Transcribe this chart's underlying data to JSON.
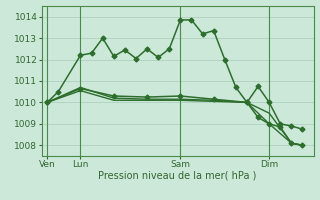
{
  "background_color": "#cce8d8",
  "grid_color": "#aaccbb",
  "line_color": "#2d6e2d",
  "xlabel": "Pression niveau de la mer( hPa )",
  "ylim": [
    1007.5,
    1014.5
  ],
  "yticks": [
    1008,
    1009,
    1010,
    1011,
    1012,
    1013,
    1014
  ],
  "day_labels": [
    "Ven",
    "Lun",
    "Sam",
    "Dim"
  ],
  "day_positions": [
    0,
    3,
    12,
    20
  ],
  "xlim": [
    -0.5,
    24
  ],
  "lines": [
    {
      "x": [
        0,
        1,
        3,
        4,
        5,
        6,
        7,
        8,
        9,
        10,
        11,
        12,
        13,
        14,
        15,
        16,
        17,
        18,
        19,
        20,
        21,
        22,
        23
      ],
      "y": [
        1010.0,
        1010.5,
        1012.2,
        1012.3,
        1013.0,
        1012.15,
        1012.45,
        1012.05,
        1012.5,
        1012.1,
        1012.5,
        1013.85,
        1013.85,
        1013.2,
        1013.35,
        1012.0,
        1010.7,
        1010.0,
        1010.75,
        1010.0,
        1009.0,
        1008.9,
        1008.75
      ],
      "marker": "D",
      "markersize": 2.5,
      "linewidth": 1.1
    },
    {
      "x": [
        0,
        3,
        6,
        9,
        12,
        15,
        18,
        20,
        22,
        23
      ],
      "y": [
        1010.0,
        1010.55,
        1010.1,
        1010.1,
        1010.1,
        1010.05,
        1010.0,
        1009.5,
        1008.1,
        1008.0
      ],
      "marker": null,
      "markersize": 0,
      "linewidth": 1.0
    },
    {
      "x": [
        0,
        3,
        6,
        9,
        12,
        15,
        18,
        20,
        22,
        23
      ],
      "y": [
        1010.0,
        1010.7,
        1010.2,
        1010.15,
        1010.15,
        1010.1,
        1010.0,
        1009.0,
        1008.1,
        1008.0
      ],
      "marker": null,
      "markersize": 0,
      "linewidth": 1.0
    },
    {
      "x": [
        0,
        3,
        6,
        9,
        12,
        15,
        18,
        19,
        20,
        21,
        22,
        23
      ],
      "y": [
        1010.0,
        1010.65,
        1010.3,
        1010.25,
        1010.3,
        1010.15,
        1010.0,
        1009.3,
        1009.0,
        1008.85,
        1008.1,
        1008.0
      ],
      "marker": "D",
      "markersize": 2.5,
      "linewidth": 1.1
    }
  ],
  "vline_positions": [
    0,
    3,
    12,
    20
  ],
  "vline_color": "#4a8a4a",
  "tick_color": "#336633",
  "xlabel_fontsize": 7,
  "tick_fontsize": 6.5
}
